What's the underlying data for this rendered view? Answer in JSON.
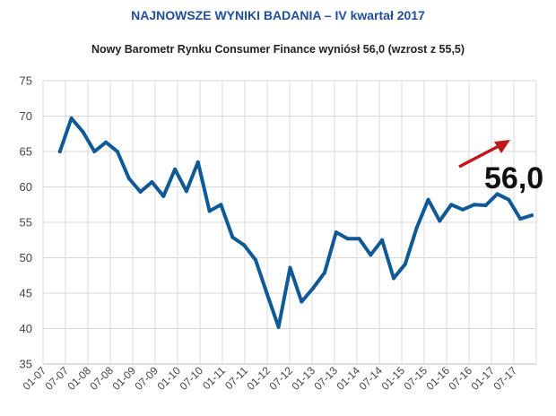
{
  "header": {
    "title": "NAJNOWSZE WYNIKI BADANIA – IV kwartał 2017",
    "subtitle": "Nowy Barometr Rynku Consumer Finance  wyniósł 56,0 (wzrost z 55,5)"
  },
  "chart_data": {
    "type": "line",
    "title": "NAJNOWSZE WYNIKI BADANIA – IV kwartał 2017",
    "subtitle": "Nowy Barometr Rynku Consumer Finance  wyniósł 56,0 (wzrost z 55,5)",
    "xlabel": "",
    "ylabel": "",
    "ylim": [
      35,
      75
    ],
    "yticks": [
      35,
      40,
      45,
      50,
      55,
      60,
      65,
      70,
      75
    ],
    "x_tick_labels": [
      "01-07",
      "07-07",
      "01-08",
      "07-08",
      "01-09",
      "07-09",
      "01-10",
      "07-10",
      "01-11",
      "07-11",
      "01-12",
      "07-12",
      "01-13",
      "07-13",
      "01-14",
      "07-14",
      "01-15",
      "07-15",
      "01-16",
      "07-16",
      "01-17",
      "07-17"
    ],
    "grid": true,
    "series": [
      {
        "name": "Barometr Rynku Consumer Finance",
        "color": "#0f5a96",
        "values": [
          65.0,
          69.7,
          67.8,
          65.0,
          66.3,
          65.0,
          61.2,
          59.3,
          60.7,
          58.7,
          62.5,
          59.4,
          63.5,
          56.6,
          57.5,
          52.9,
          51.8,
          49.7,
          44.9,
          40.2,
          48.6,
          43.8,
          45.7,
          47.9,
          53.6,
          52.7,
          52.7,
          50.4,
          52.5,
          47.1,
          49.1,
          54.2,
          58.2,
          55.2,
          57.5,
          56.8,
          57.5,
          57.4,
          59.0,
          58.2,
          55.5,
          56.0
        ]
      }
    ],
    "annotation": {
      "label": "56,0",
      "arrow_color": "#c0171d"
    }
  }
}
